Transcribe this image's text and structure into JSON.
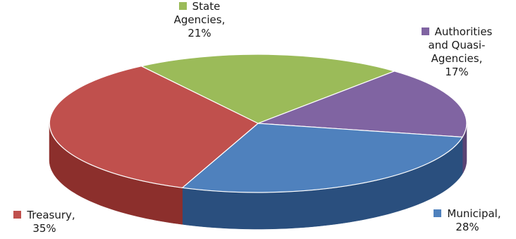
{
  "chart_data": {
    "type": "pie",
    "title": "",
    "slices": [
      {
        "name": "State Agencies",
        "value": 21,
        "label_lines": [
          "State",
          "Agencies,",
          "21%"
        ],
        "color": "#9bbb59",
        "side": "#6f8a3a"
      },
      {
        "name": "Authorities and Quasi-Agencies",
        "value": 17,
        "label_lines": [
          "Authorities",
          "and Quasi-",
          "Agencies,",
          "17%"
        ],
        "color": "#8064a2",
        "side": "#5a4474"
      },
      {
        "name": "Municipal",
        "value": 28,
        "label_lines": [
          "Municipal,",
          "28%"
        ],
        "color": "#4f81bd",
        "side": "#2a4f7e"
      },
      {
        "name": "Treasury",
        "value": 35,
        "label_lines": [
          "Treasury,",
          "35%"
        ],
        "color": "#c0504d",
        "side": "#8c2f2c"
      }
    ],
    "style": "3d"
  }
}
